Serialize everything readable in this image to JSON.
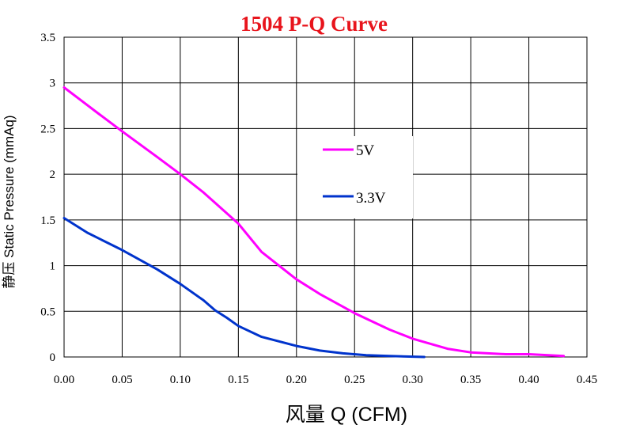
{
  "chart_data": {
    "type": "line",
    "title": "1504 P-Q Curve",
    "xlabel": "风量 Q (CFM)",
    "ylabel": "静压  Static Pressure (mmAq)",
    "xlim": [
      0,
      0.45
    ],
    "ylim": [
      0,
      3.5
    ],
    "x_ticks": [
      "0.00",
      "0.05",
      "0.10",
      "0.15",
      "0.20",
      "0.25",
      "0.30",
      "0.35",
      "0.40",
      "0.45"
    ],
    "y_ticks": [
      "0",
      "0.5",
      "1",
      "1.5",
      "2",
      "2.5",
      "3",
      "3.5"
    ],
    "grid": true,
    "legend_position": "center-right",
    "series": [
      {
        "name": "5V",
        "color": "#ff00ff",
        "x": [
          0.0,
          0.03,
          0.05,
          0.08,
          0.1,
          0.12,
          0.15,
          0.17,
          0.2,
          0.22,
          0.25,
          0.28,
          0.3,
          0.33,
          0.35,
          0.38,
          0.4,
          0.43
        ],
        "y": [
          2.95,
          2.66,
          2.47,
          2.19,
          2.0,
          1.8,
          1.46,
          1.15,
          0.85,
          0.69,
          0.48,
          0.3,
          0.2,
          0.09,
          0.05,
          0.03,
          0.03,
          0.01
        ]
      },
      {
        "name": "3.3V",
        "color": "#0033cc",
        "x": [
          0.0,
          0.02,
          0.05,
          0.08,
          0.1,
          0.12,
          0.13,
          0.14,
          0.15,
          0.17,
          0.2,
          0.22,
          0.24,
          0.26,
          0.28,
          0.31
        ],
        "y": [
          1.52,
          1.36,
          1.17,
          0.96,
          0.8,
          0.62,
          0.51,
          0.43,
          0.34,
          0.22,
          0.12,
          0.07,
          0.04,
          0.02,
          0.01,
          0.0
        ]
      }
    ]
  }
}
